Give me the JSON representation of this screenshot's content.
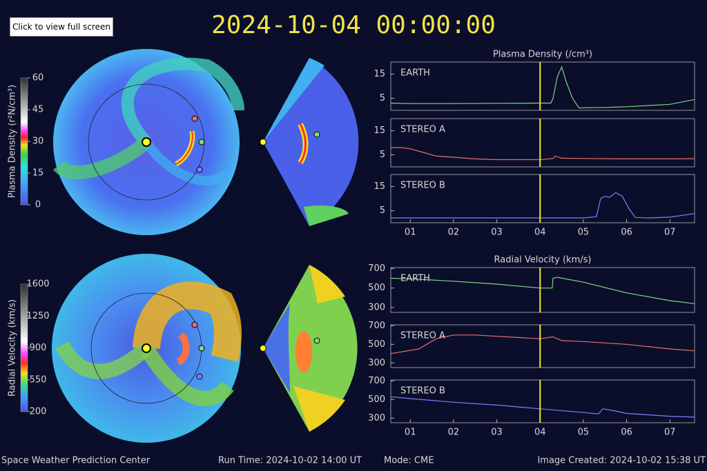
{
  "button": "Click to view full screen",
  "timestamp": "2024-10-04 00:00:00",
  "colorbars": [
    {
      "label": "Plasma Density (r²N/cm³)",
      "lim": [
        0,
        60
      ],
      "ticks": [
        0,
        15,
        30,
        45,
        60
      ]
    },
    {
      "label": "Radial Velocity (km/s)",
      "lim": [
        200,
        1600
      ],
      "ticks": [
        200,
        550,
        900,
        1250,
        1600
      ]
    }
  ],
  "chart_data": [
    {
      "type": "line",
      "title": "Plasma Density (/cm³)",
      "x": [
        0.55,
        1,
        2,
        3,
        4,
        4.25,
        4.3,
        4.4,
        4.5,
        4.6,
        4.75,
        4.9,
        5.5,
        6,
        6.5,
        7,
        7.57
      ],
      "xlim": [
        0.55,
        7.57
      ],
      "ylim": [
        0,
        20
      ],
      "yticks": [
        5,
        15
      ],
      "vline": 4,
      "series": [
        {
          "name": "EARTH",
          "color": "#7fd67f",
          "values": [
            3,
            2.8,
            2.8,
            2.9,
            3,
            3,
            5,
            14,
            18,
            12,
            5,
            1,
            1.2,
            1.5,
            2,
            2.5,
            4.5
          ]
        }
      ]
    },
    {
      "type": "line",
      "x": [
        0.55,
        0.8,
        1,
        1.3,
        1.6,
        2,
        2.5,
        3,
        4,
        4.3,
        4.35,
        4.5,
        5,
        6,
        7,
        7.57
      ],
      "xlim": [
        0.55,
        7.57
      ],
      "ylim": [
        0,
        20
      ],
      "yticks": [
        5,
        15
      ],
      "vline": 4,
      "series": [
        {
          "name": "STEREO A",
          "color": "#e8706a",
          "values": [
            8,
            8,
            7.5,
            6,
            4.5,
            4,
            3.3,
            3,
            3,
            3.5,
            4.5,
            3.6,
            3.5,
            3.3,
            3.3,
            3.4
          ]
        }
      ]
    },
    {
      "type": "line",
      "x": [
        0.55,
        2,
        4,
        5,
        5.3,
        5.4,
        5.5,
        5.6,
        5.75,
        5.9,
        6.05,
        6.2,
        6.5,
        7,
        7.57
      ],
      "xlim": [
        0.55,
        7.57
      ],
      "ylim": [
        0,
        20
      ],
      "yticks": [
        5,
        15
      ],
      "vline": 4,
      "xticks": [
        {
          "value": 1,
          "label": "01"
        },
        {
          "value": 2,
          "label": "02"
        },
        {
          "value": 3,
          "label": "03"
        },
        {
          "value": 4,
          "label": "04"
        },
        {
          "value": 5,
          "label": "05"
        },
        {
          "value": 6,
          "label": "06"
        },
        {
          "value": 7,
          "label": "07"
        }
      ],
      "series": [
        {
          "name": "STEREO B",
          "color": "#7f7fff",
          "values": [
            2,
            2,
            2,
            2,
            2.5,
            10,
            11,
            10.5,
            12.5,
            11,
            6,
            2.2,
            2,
            2.3,
            3.8
          ]
        }
      ]
    },
    {
      "type": "line",
      "title": "Radial Velocity (km/s)",
      "x": [
        0.55,
        1,
        2,
        3,
        4,
        4.28,
        4.3,
        4.4,
        5,
        6,
        7,
        7.57
      ],
      "xlim": [
        0.55,
        7.57
      ],
      "ylim": [
        250,
        710
      ],
      "yticks": [
        300,
        500,
        700
      ],
      "vline": 4,
      "series": [
        {
          "name": "EARTH",
          "color": "#7fd67f",
          "values": [
            600,
            595,
            570,
            540,
            500,
            500,
            600,
            610,
            560,
            450,
            370,
            340
          ]
        }
      ]
    },
    {
      "type": "line",
      "x": [
        0.55,
        1.2,
        1.6,
        2,
        2.5,
        4,
        4.3,
        4.5,
        5,
        6,
        7,
        7.57
      ],
      "xlim": [
        0.55,
        7.57
      ],
      "ylim": [
        250,
        710
      ],
      "yticks": [
        300,
        500,
        700
      ],
      "vline": 4,
      "series": [
        {
          "name": "STEREO A",
          "color": "#e8706a",
          "values": [
            400,
            450,
            560,
            600,
            600,
            560,
            580,
            540,
            530,
            500,
            450,
            430
          ]
        }
      ]
    },
    {
      "type": "line",
      "x": [
        0.55,
        1,
        2,
        3,
        4,
        5,
        5.35,
        5.45,
        5.7,
        6,
        7,
        7.57
      ],
      "xlim": [
        0.55,
        7.57
      ],
      "ylim": [
        250,
        710
      ],
      "yticks": [
        300,
        500,
        700
      ],
      "vline": 4,
      "xticks": [
        {
          "value": 1,
          "label": "01"
        },
        {
          "value": 2,
          "label": "02"
        },
        {
          "value": 3,
          "label": "03"
        },
        {
          "value": 4,
          "label": "04"
        },
        {
          "value": 5,
          "label": "05"
        },
        {
          "value": 6,
          "label": "06"
        },
        {
          "value": 7,
          "label": "07"
        }
      ],
      "series": [
        {
          "name": "STEREO B",
          "color": "#7f7fff",
          "values": [
            530,
            510,
            470,
            440,
            400,
            360,
            345,
            400,
            380,
            350,
            320,
            310
          ]
        }
      ]
    }
  ],
  "footer": {
    "org": "Space Weather Prediction Center",
    "run_time": "Run Time: 2024-10-02 14:00 UT",
    "mode": "Mode: CME",
    "created": "Image Created: 2024-10-02 15:38 UT"
  }
}
